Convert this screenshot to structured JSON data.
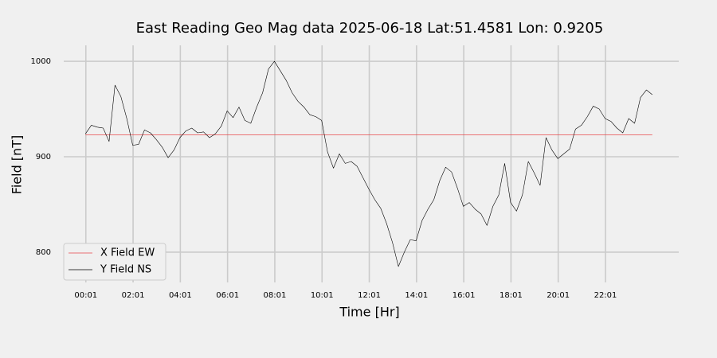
{
  "chart_data": {
    "type": "line",
    "title": "East Reading Geo Mag data        2025-06-18      Lat:51.4581  Lon: 0.9205",
    "x_label": "Time  [Hr]",
    "y_label": "Field  [nT]",
    "x": [
      0,
      0.25,
      0.5,
      0.75,
      1,
      1.25,
      1.5,
      1.75,
      2,
      2.25,
      2.5,
      2.75,
      3,
      3.25,
      3.5,
      3.75,
      4,
      4.25,
      4.5,
      4.75,
      5,
      5.25,
      5.5,
      5.75,
      6,
      6.25,
      6.5,
      6.75,
      7,
      7.25,
      7.5,
      7.75,
      8,
      8.25,
      8.5,
      8.75,
      9,
      9.25,
      9.5,
      9.75,
      10,
      10.25,
      10.5,
      10.75,
      11,
      11.25,
      11.5,
      11.75,
      12,
      12.25,
      12.5,
      12.75,
      13,
      13.25,
      13.5,
      13.75,
      14,
      14.25,
      14.5,
      14.75,
      15,
      15.25,
      15.5,
      15.75,
      16,
      16.25,
      16.5,
      16.75,
      17,
      17.25,
      17.5,
      17.75,
      18,
      18.25,
      18.5,
      18.75,
      19,
      19.25,
      19.5,
      19.75,
      20,
      20.25,
      20.5,
      20.75,
      21,
      21.25,
      21.5,
      21.75,
      22,
      22.25,
      22.5,
      22.75,
      23,
      23.25,
      23.5,
      23.75,
      24
    ],
    "series": [
      {
        "name": "X Field EW",
        "color": "#e8474a",
        "values": [
          923,
          923,
          923,
          923,
          923,
          923,
          923,
          923,
          923,
          923,
          923,
          923,
          923,
          923,
          923,
          923,
          923,
          923,
          923,
          923,
          923,
          923,
          923,
          923,
          923,
          923,
          923,
          923,
          923,
          923,
          923,
          923,
          923,
          923,
          923,
          923,
          923,
          923,
          923,
          923,
          923,
          923,
          923,
          923,
          923,
          923,
          923,
          923,
          923,
          923,
          923,
          923,
          923,
          923,
          923,
          923,
          923,
          923,
          923,
          923,
          923,
          923,
          923,
          923,
          923,
          923,
          923,
          923,
          923,
          923,
          923,
          923,
          923,
          923,
          923,
          923,
          923,
          923,
          923,
          923,
          923,
          923,
          923,
          923,
          923,
          923,
          923,
          923,
          923,
          923,
          923,
          923,
          923,
          923,
          923,
          923,
          923
        ]
      },
      {
        "name": "Y Field NS",
        "color": "#000000",
        "values": [
          924,
          933,
          931,
          930,
          916,
          975,
          963,
          940,
          912,
          913,
          928,
          925,
          918,
          910,
          899,
          907,
          920,
          927,
          930,
          925,
          926,
          920,
          924,
          932,
          948,
          941,
          952,
          938,
          935,
          952,
          967,
          992,
          1000,
          990,
          980,
          967,
          958,
          952,
          944,
          942,
          938,
          905,
          888,
          903,
          893,
          895,
          890,
          878,
          866,
          855,
          846,
          830,
          810,
          785,
          800,
          813,
          812,
          833,
          845,
          855,
          875,
          889,
          884,
          867,
          848,
          852,
          845,
          840,
          828,
          848,
          860,
          893,
          852,
          843,
          860,
          895,
          883,
          870,
          920,
          907,
          898,
          903,
          908,
          929,
          933,
          942,
          953,
          950,
          940,
          937,
          930,
          925,
          940,
          935,
          962,
          970,
          965
        ]
      }
    ],
    "xlim": [
      -0.92,
      25.12
    ],
    "xticks": [
      {
        "value": 0.0167,
        "label": "00:01"
      },
      {
        "value": 2.0167,
        "label": "02:01"
      },
      {
        "value": 4.0167,
        "label": "04:01"
      },
      {
        "value": 6.0167,
        "label": "06:01"
      },
      {
        "value": 8.0167,
        "label": "08:01"
      },
      {
        "value": 10.0167,
        "label": "10:01"
      },
      {
        "value": 12.0167,
        "label": "12:01"
      },
      {
        "value": 14.0167,
        "label": "14:01"
      },
      {
        "value": 16.0167,
        "label": "16:01"
      },
      {
        "value": 18.0167,
        "label": "18:01"
      },
      {
        "value": 20.0167,
        "label": "20:01"
      },
      {
        "value": 22.0167,
        "label": "22:01"
      }
    ],
    "ylim": [
      768.3,
      1016.7
    ],
    "yticks": [
      800,
      900,
      1000
    ],
    "grid": true,
    "legend": "lower left"
  }
}
